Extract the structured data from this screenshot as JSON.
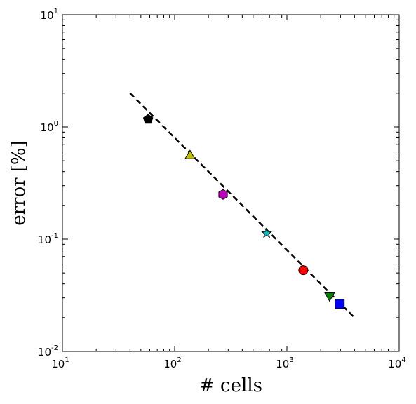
{
  "chart_data": {
    "type": "scatter",
    "xlabel": "# cells",
    "ylabel": "error [%]",
    "xscale": "log",
    "yscale": "log",
    "xlim": [
      10,
      10000
    ],
    "ylim": [
      0.01,
      10
    ],
    "grid": false,
    "x_ticks": [
      {
        "base": "10",
        "exp": "1",
        "value": 10
      },
      {
        "base": "10",
        "exp": "2",
        "value": 100
      },
      {
        "base": "10",
        "exp": "3",
        "value": 1000
      },
      {
        "base": "10",
        "exp": "4",
        "value": 10000
      }
    ],
    "y_ticks": [
      {
        "base": "10",
        "exp": "1",
        "value": 10
      },
      {
        "base": "10",
        "exp": "0",
        "value": 1
      },
      {
        "base": "10",
        "exp": "-1",
        "value": 0.1
      },
      {
        "base": "10",
        "exp": "-2",
        "value": 0.01
      }
    ],
    "points": [
      {
        "x": 58,
        "y": 1.17,
        "marker": "pentagon",
        "color": "#000000"
      },
      {
        "x": 137,
        "y": 0.56,
        "marker": "triangle-up",
        "color": "#bfbf00"
      },
      {
        "x": 270,
        "y": 0.25,
        "marker": "hexagon",
        "color": "#bf00bf"
      },
      {
        "x": 660,
        "y": 0.113,
        "marker": "star",
        "color": "#00bfbf"
      },
      {
        "x": 1400,
        "y": 0.053,
        "marker": "circle",
        "color": "#ff0000"
      },
      {
        "x": 2400,
        "y": 0.031,
        "marker": "triangle-down",
        "color": "#008000"
      },
      {
        "x": 2950,
        "y": 0.0265,
        "marker": "square",
        "color": "#0000ff"
      }
    ],
    "fit_line": {
      "x": [
        40,
        4000
      ],
      "y": [
        2.0,
        0.02
      ],
      "style": "dashed",
      "color": "#000000"
    }
  }
}
